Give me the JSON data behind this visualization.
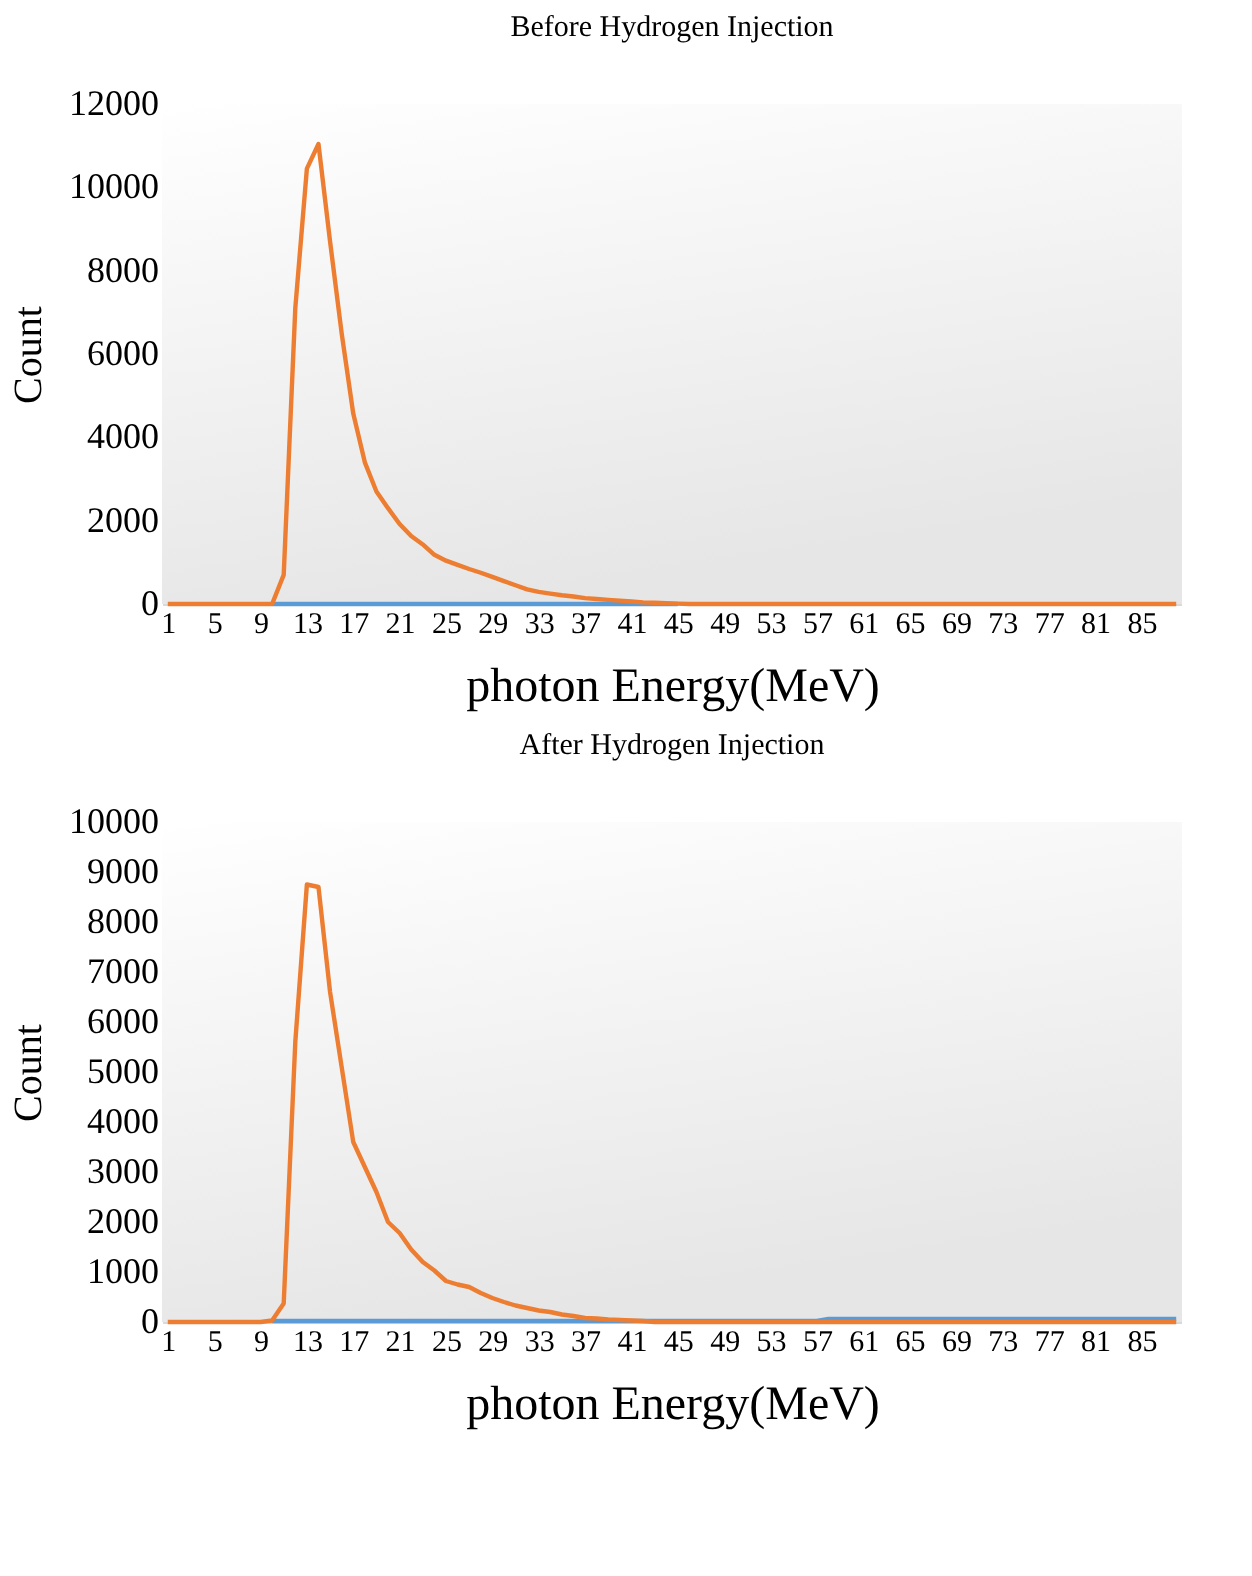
{
  "chart_data": [
    {
      "type": "line",
      "title": "Before Hydrogen Injection",
      "xlabel": "photon Energy(MeV)",
      "ylabel": "Count",
      "categories": [
        "1",
        null,
        null,
        null,
        "5",
        null,
        null,
        null,
        "9",
        null,
        null,
        null,
        "13",
        null,
        null,
        null,
        "17",
        null,
        null,
        null,
        "21",
        null,
        null,
        null,
        "25",
        null,
        null,
        null,
        "29",
        null,
        null,
        null,
        "33",
        null,
        null,
        null,
        "37",
        null,
        null,
        null,
        "41",
        null,
        null,
        null,
        "45",
        null,
        null,
        null,
        "49",
        null,
        null,
        null,
        "53",
        null,
        null,
        null,
        "57",
        null,
        null,
        null,
        "61",
        null,
        null,
        null,
        "65",
        null,
        null,
        null,
        "69",
        null,
        null,
        null,
        "73",
        null,
        null,
        null,
        "77",
        null,
        null,
        null,
        "81",
        null,
        null,
        null,
        "85",
        null,
        null,
        null
      ],
      "series": [
        {
          "color": "#5b9bd5",
          "values": [
            null,
            null,
            null,
            null,
            null,
            null,
            null,
            null,
            null,
            0,
            0,
            0,
            0,
            0,
            0,
            0,
            0,
            0,
            0,
            0,
            0,
            0,
            0,
            0,
            0,
            0,
            0,
            0,
            0,
            0,
            0,
            0,
            0,
            0,
            0,
            0,
            0,
            0,
            0,
            0,
            0,
            0,
            0,
            0,
            0,
            null,
            null,
            null,
            null,
            null,
            null,
            null,
            null,
            null,
            null,
            null,
            null,
            null,
            null,
            null,
            null,
            null,
            null,
            null,
            null,
            null,
            null,
            null,
            null,
            null,
            null,
            null,
            null,
            null,
            null,
            null,
            null,
            null,
            null,
            null,
            null,
            null,
            null,
            null,
            null,
            null,
            null,
            null
          ]
        },
        {
          "color": "#ed7d31",
          "values": [
            0,
            0,
            0,
            0,
            0,
            0,
            0,
            0,
            0,
            0,
            700,
            7100,
            10450,
            11040,
            8700,
            6500,
            4570,
            3400,
            2700,
            2300,
            1920,
            1630,
            1430,
            1180,
            1040,
            940,
            840,
            750,
            650,
            550,
            450,
            350,
            290,
            250,
            210,
            180,
            140,
            120,
            100,
            80,
            60,
            40,
            30,
            20,
            10,
            0,
            0,
            0,
            0,
            0,
            0,
            0,
            0,
            0,
            0,
            0,
            0,
            0,
            0,
            0,
            0,
            0,
            0,
            0,
            0,
            0,
            0,
            0,
            0,
            0,
            0,
            0,
            0,
            0,
            0,
            0,
            0,
            0,
            0,
            0,
            0,
            0,
            0,
            0,
            0,
            0,
            0,
            0
          ]
        }
      ],
      "ylim": [
        0,
        12000
      ],
      "yticks": [
        0,
        2000,
        4000,
        6000,
        8000,
        10000,
        12000
      ],
      "grid": false
    },
    {
      "type": "line",
      "title": "After Hydrogen Injection",
      "xlabel": "photon Energy(MeV)",
      "ylabel": "Count",
      "categories": [
        "1",
        null,
        null,
        null,
        "5",
        null,
        null,
        null,
        "9",
        null,
        null,
        null,
        "13",
        null,
        null,
        null,
        "17",
        null,
        null,
        null,
        "21",
        null,
        null,
        null,
        "25",
        null,
        null,
        null,
        "29",
        null,
        null,
        null,
        "33",
        null,
        null,
        null,
        "37",
        null,
        null,
        null,
        "41",
        null,
        null,
        null,
        "45",
        null,
        null,
        null,
        "49",
        null,
        null,
        null,
        "53",
        null,
        null,
        null,
        "57",
        null,
        null,
        null,
        "61",
        null,
        null,
        null,
        "65",
        null,
        null,
        null,
        "69",
        null,
        null,
        null,
        "73",
        null,
        null,
        null,
        "77",
        null,
        null,
        null,
        "81",
        null,
        null,
        null,
        "85",
        null,
        null,
        null
      ],
      "series": [
        {
          "color": "#5b9bd5",
          "values": [
            null,
            null,
            null,
            null,
            null,
            null,
            null,
            null,
            null,
            20,
            20,
            20,
            20,
            20,
            20,
            20,
            20,
            20,
            20,
            20,
            20,
            20,
            20,
            20,
            20,
            20,
            20,
            20,
            20,
            20,
            20,
            20,
            20,
            20,
            20,
            20,
            20,
            20,
            20,
            20,
            20,
            20,
            20,
            20,
            20,
            20,
            20,
            20,
            20,
            20,
            20,
            20,
            20,
            20,
            20,
            20,
            20,
            60,
            60,
            60,
            60,
            60,
            60,
            60,
            60,
            60,
            60,
            60,
            60,
            60,
            60,
            60,
            60,
            60,
            60,
            60,
            60,
            60,
            60,
            60,
            60,
            60,
            60,
            60,
            60,
            60,
            60,
            60
          ]
        },
        {
          "color": "#ed7d31",
          "values": [
            0,
            0,
            0,
            0,
            0,
            0,
            0,
            0,
            0,
            30,
            370,
            5600,
            8750,
            8700,
            6600,
            5100,
            3600,
            3100,
            2600,
            2000,
            1780,
            1450,
            1200,
            1030,
            820,
            750,
            700,
            580,
            480,
            400,
            330,
            280,
            230,
            200,
            150,
            120,
            80,
            70,
            50,
            40,
            30,
            20,
            0,
            0,
            0,
            0,
            0,
            0,
            0,
            0,
            0,
            0,
            0,
            0,
            0,
            0,
            0,
            0,
            0,
            0,
            0,
            0,
            0,
            0,
            0,
            0,
            0,
            0,
            0,
            0,
            0,
            0,
            0,
            0,
            0,
            0,
            0,
            0,
            0,
            0,
            0,
            0,
            0,
            0,
            0,
            0,
            0,
            0
          ]
        }
      ],
      "ylim": [
        0,
        10000
      ],
      "yticks": [
        0,
        1000,
        2000,
        3000,
        4000,
        5000,
        6000,
        7000,
        8000,
        9000,
        10000
      ],
      "grid": false
    }
  ]
}
